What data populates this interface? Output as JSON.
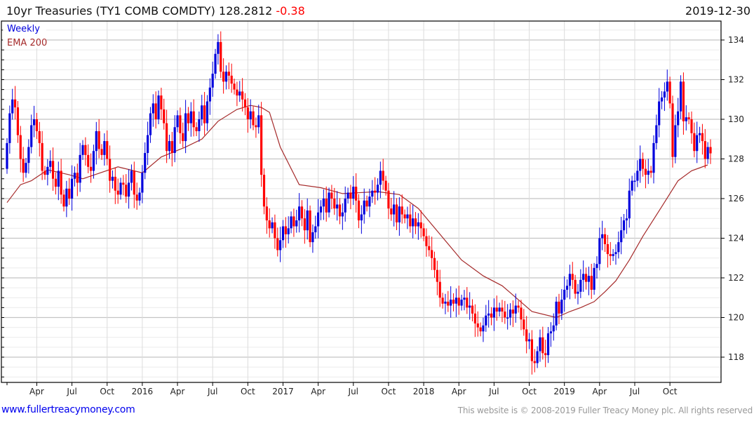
{
  "header": {
    "title": "10yr Treasuries (TY1 COMB COMDTY) 128.2812",
    "change": "-0.38",
    "date": "2019-12-30"
  },
  "legend": {
    "period": "Weekly",
    "indicator": "EMA 200"
  },
  "colors": {
    "up": "#0000dd",
    "down": "#ff0000",
    "ema": "#a52a2a",
    "change": "#ff0000"
  },
  "footer": {
    "link": "www.fullertreacymoney.com",
    "copyright": "This website is © 2008-2019 Fuller Treacy Money plc. All rights reserved"
  },
  "chart_data": {
    "type": "candlestick",
    "title": "10yr Treasuries (TY1 COMB COMDTY)",
    "period": "weekly",
    "ylim": [
      116.7,
      135
    ],
    "yticks": [
      118,
      120,
      122,
      124,
      126,
      128,
      130,
      132,
      134
    ],
    "xtick_labels": [
      "Apr",
      "Jul",
      "Oct",
      "2016",
      "Apr",
      "Jul",
      "Oct",
      "2017",
      "Apr",
      "Jul",
      "Oct",
      "2018",
      "Apr",
      "Jul",
      "Oct",
      "2019",
      "Apr",
      "Jul",
      "Oct"
    ],
    "xtick_week_index": [
      11,
      24,
      37,
      50,
      63,
      76,
      89,
      102,
      115,
      128,
      141,
      154,
      167,
      180,
      193,
      206,
      219,
      232,
      245
    ],
    "first_open": 127.5,
    "closes": [
      128.8,
      130.3,
      131.0,
      130.6,
      129.2,
      128.0,
      127.3,
      127.8,
      128.6,
      129.7,
      130.0,
      129.4,
      128.8,
      127.4,
      127.2,
      127.6,
      127.9,
      127.0,
      126.6,
      127.4,
      126.2,
      125.6,
      126.5,
      126.0,
      127.0,
      127.3,
      126.8,
      128.2,
      128.7,
      128.2,
      127.6,
      127.4,
      128.4,
      129.4,
      128.5,
      128.2,
      128.9,
      128.0,
      126.9,
      127.1,
      126.4,
      126.2,
      126.8,
      126.7,
      126.1,
      126.8,
      127.4,
      126.2,
      125.9,
      126.3,
      127.3,
      128.3,
      129.2,
      130.3,
      130.8,
      130.0,
      131.2,
      130.5,
      129.8,
      128.4,
      128.9,
      128.3,
      129.6,
      130.2,
      129.3,
      128.9,
      130.3,
      129.8,
      130.4,
      129.6,
      129.4,
      130.0,
      130.7,
      129.8,
      130.9,
      131.6,
      132.3,
      133.3,
      133.9,
      132.4,
      131.9,
      132.4,
      132.2,
      131.8,
      131.5,
      131.2,
      131.4,
      131.0,
      130.6,
      130.0,
      130.4,
      129.7,
      129.6,
      130.2,
      127.2,
      125.6,
      124.9,
      124.5,
      124.8,
      124.0,
      123.4,
      123.9,
      124.6,
      124.2,
      124.5,
      125.1,
      124.6,
      124.9,
      125.6,
      125.0,
      124.4,
      125.4,
      123.8,
      124.3,
      124.6,
      125.3,
      125.6,
      126.0,
      125.3,
      126.3,
      126.0,
      125.5,
      125.7,
      125.1,
      125.3,
      126.0,
      126.3,
      126.0,
      126.6,
      125.9,
      124.9,
      125.2,
      125.9,
      125.6,
      126.1,
      126.4,
      126.3,
      126.7,
      127.4,
      126.9,
      126.4,
      125.5,
      125.2,
      125.7,
      124.8,
      125.6,
      125.2,
      125.0,
      125.2,
      124.6,
      125.0,
      124.6,
      124.8,
      124.5,
      124.1,
      123.6,
      123.4,
      123.0,
      122.4,
      121.8,
      121.0,
      120.7,
      120.8,
      120.6,
      120.9,
      120.7,
      121.0,
      120.6,
      120.9,
      121.0,
      120.5,
      120.6,
      120.2,
      119.7,
      119.5,
      119.3,
      119.6,
      120.1,
      120.2,
      120.0,
      120.5,
      120.3,
      120.5,
      120.3,
      120.0,
      120.0,
      120.4,
      120.2,
      120.6,
      120.5,
      119.9,
      119.4,
      118.8,
      118.9,
      117.8,
      117.7,
      118.3,
      119.0,
      118.2,
      118.1,
      119.2,
      119.3,
      119.6,
      120.8,
      120.2,
      120.9,
      121.4,
      121.6,
      122.2,
      121.9,
      121.2,
      121.3,
      121.9,
      122.2,
      121.8,
      122.1,
      121.4,
      122.5,
      122.7,
      124.0,
      124.2,
      123.7,
      123.2,
      123.1,
      123.2,
      123.3,
      123.8,
      124.4,
      124.9,
      125.0,
      126.4,
      126.9,
      126.9,
      127.4,
      128.0,
      127.5,
      127.2,
      127.4,
      127.3,
      128.8,
      129.7,
      130.9,
      131.1,
      131.4,
      131.9,
      130.8,
      128.1,
      129.7,
      130.4,
      131.9,
      129.9,
      130.1,
      130.0,
      129.3,
      128.4,
      129.2,
      129.3,
      128.9,
      128.0,
      128.6,
      128.2812
    ],
    "ema_200": [
      [
        0,
        125.8
      ],
      [
        5,
        126.7
      ],
      [
        9,
        126.9
      ],
      [
        15,
        127.45
      ],
      [
        23,
        127.2
      ],
      [
        28,
        127.0
      ],
      [
        41,
        127.6
      ],
      [
        50,
        127.3
      ],
      [
        57,
        128.1
      ],
      [
        66,
        128.6
      ],
      [
        72,
        129.0
      ],
      [
        78,
        129.9
      ],
      [
        85,
        130.5
      ],
      [
        90,
        130.7
      ],
      [
        94,
        130.6
      ],
      [
        97,
        130.35
      ],
      [
        101,
        128.6
      ],
      [
        108,
        126.7
      ],
      [
        116,
        126.55
      ],
      [
        124,
        126.25
      ],
      [
        137,
        126.35
      ],
      [
        145,
        126.2
      ],
      [
        152,
        125.5
      ],
      [
        160,
        124.2
      ],
      [
        168,
        122.9
      ],
      [
        176,
        122.1
      ],
      [
        183,
        121.6
      ],
      [
        186,
        121.25
      ],
      [
        194,
        120.3
      ],
      [
        203,
        120.0
      ],
      [
        208,
        120.3
      ],
      [
        212,
        120.5
      ],
      [
        217,
        120.8
      ],
      [
        221,
        121.3
      ],
      [
        225,
        121.85
      ],
      [
        230,
        122.9
      ],
      [
        235,
        124.1
      ],
      [
        242,
        125.6
      ],
      [
        248,
        126.9
      ],
      [
        253,
        127.4
      ],
      [
        259,
        127.7
      ]
    ]
  }
}
